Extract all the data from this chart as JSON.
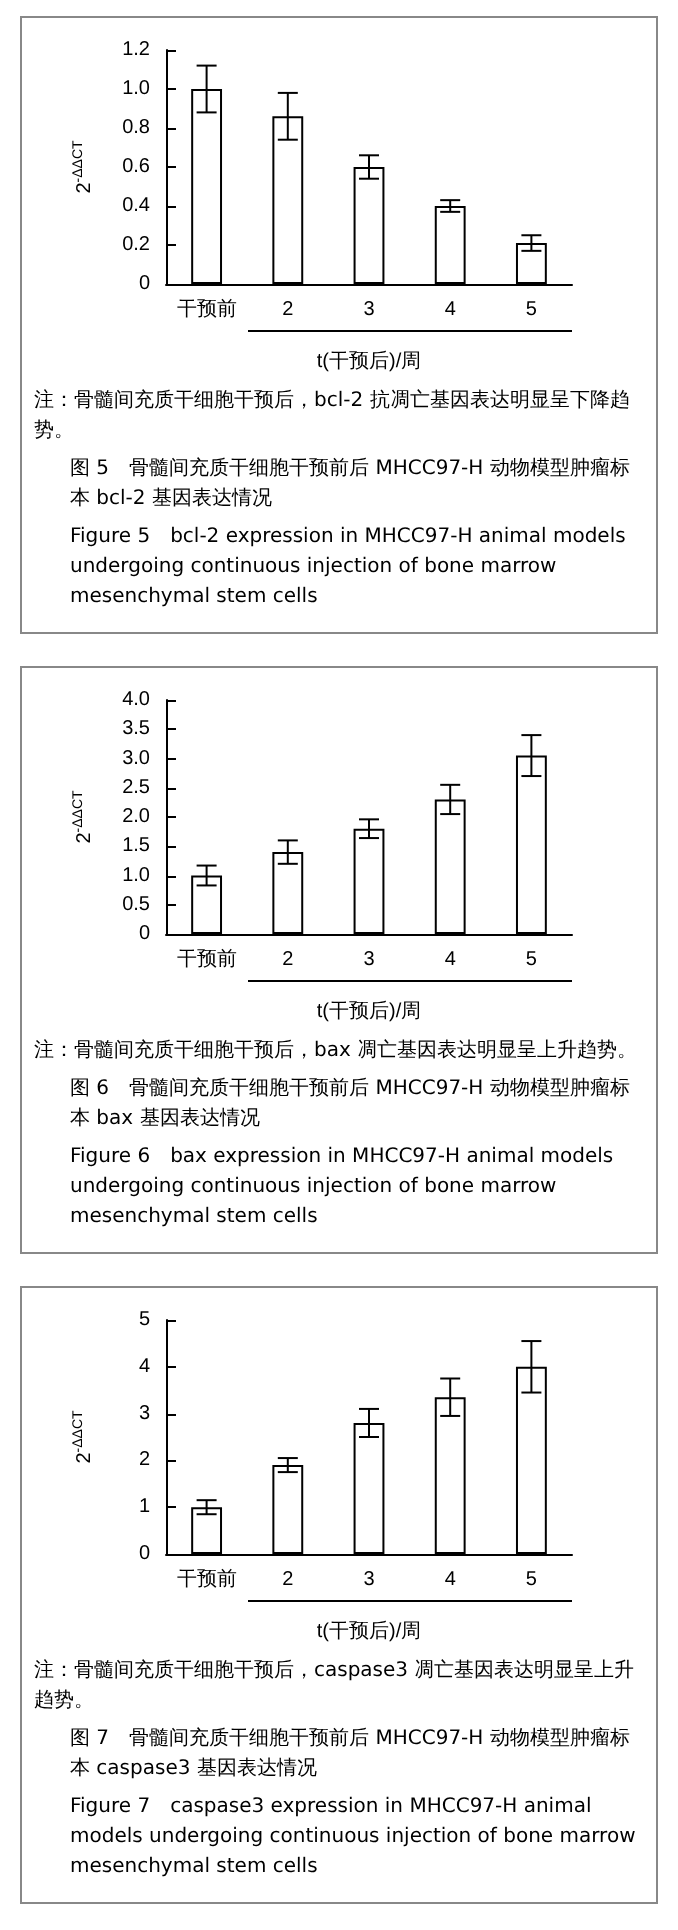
{
  "chart_data": [
    {
      "type": "bar",
      "categories": [
        "干预前",
        "2",
        "3",
        "4",
        "5"
      ],
      "xlabel": "t(干预后)/周",
      "ylabel": "2$^{-ΔΔCT}$",
      "values": [
        1.0,
        0.86,
        0.6,
        0.4,
        0.21
      ],
      "errors": [
        0.12,
        0.12,
        0.06,
        0.03,
        0.04
      ],
      "color": "#ffffff",
      "ylim": [
        0,
        1.2
      ],
      "yticks": [
        0,
        {
          "value": 0.2,
          "label": "0.2"
        },
        {
          "value": 0.4,
          "label": "0.4"
        },
        {
          "value": 0.6,
          "label": "0.6"
        },
        {
          "value": 0.8,
          "label": "0.8"
        },
        {
          "value": 1.0,
          "label": "1.0"
        },
        {
          "value": 1.2,
          "label": "1.2"
        }
      ],
      "annotations": [
        "注：骨髓间充质干细胞干预后，bcl-2 抗凋亡基因表达明显呈下降趋势。",
        "图 5　骨髓间充质干细胞干预前后 MHCC97-H 动物模型肿瘤标本 bcl-2 基因表达情况",
        "Figure 5　bcl-2 expression in MHCC97-H animal models undergoing continuous injection of bone marrow mesenchymal stem cells"
      ]
    },
    {
      "type": "bar",
      "categories": [
        "干预前",
        "2",
        "3",
        "4",
        "5"
      ],
      "xlabel": "t(干预后)/周",
      "ylabel": "2$^{-ΔΔCT}$",
      "values": [
        1.0,
        1.4,
        1.8,
        2.3,
        3.05
      ],
      "errors": [
        0.17,
        0.2,
        0.16,
        0.25,
        0.35
      ],
      "color": "#ffffff",
      "ylim": [
        0,
        4.0
      ],
      "yticks": [
        0,
        {
          "value": 0.5,
          "label": "0.5"
        },
        {
          "value": 1.0,
          "label": "1.0"
        },
        {
          "value": 1.5,
          "label": "1.5"
        },
        {
          "value": 2.0,
          "label": "2.0"
        },
        {
          "value": 2.5,
          "label": "2.5"
        },
        {
          "value": 3.0,
          "label": "3.0"
        },
        {
          "value": 3.5,
          "label": "3.5"
        },
        {
          "value": 4.0,
          "label": "4.0"
        }
      ],
      "annotations": [
        "注：骨髓间充质干细胞干预后，bax 凋亡基因表达明显呈上升趋势。",
        "图 6　骨髓间充质干细胞干预前后 MHCC97-H 动物模型肿瘤标本 bax 基因表达情况",
        "Figure 6　bax expression in MHCC97-H animal models undergoing continuous injection of bone marrow mesenchymal stem cells"
      ]
    },
    {
      "type": "bar",
      "categories": [
        "干预前",
        "2",
        "3",
        "4",
        "5"
      ],
      "xlabel": "t(干预后)/周",
      "ylabel": "2$^{-ΔΔCT}$",
      "values": [
        1.0,
        1.9,
        2.8,
        3.35,
        4.0
      ],
      "errors": [
        0.15,
        0.15,
        0.3,
        0.4,
        0.55
      ],
      "color": "#ffffff",
      "ylim": [
        0,
        5
      ],
      "yticks": [
        0,
        1,
        2,
        3,
        4,
        5
      ],
      "annotations": [
        "注：骨髓间充质干细胞干预后，caspase3 凋亡基因表达明显呈上升趋势。",
        "图 7　骨髓间充质干细胞干预前后 MHCC97-H 动物模型肿瘤标本 caspase3 基因表达情况",
        "Figure 7　caspase3 expression in MHCC97-H animal models undergoing continuous injection of bone marrow mesenchymal stem cells"
      ]
    }
  ]
}
